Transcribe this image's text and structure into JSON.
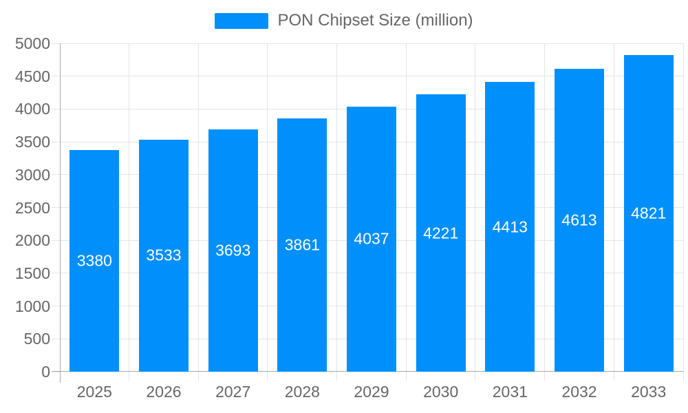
{
  "chart_data": {
    "type": "bar",
    "title": "",
    "legend": {
      "label": "PON Chipset Size (million)",
      "position": "top"
    },
    "categories": [
      "2025",
      "2026",
      "2027",
      "2028",
      "2029",
      "2030",
      "2031",
      "2032",
      "2033"
    ],
    "values": [
      3380,
      3533,
      3693,
      3861,
      4037,
      4221,
      4413,
      4613,
      4821
    ],
    "xlabel": "",
    "ylabel": "",
    "ylim": [
      0,
      5000
    ],
    "yticks": [
      0,
      500,
      1000,
      1500,
      2000,
      2500,
      3000,
      3500,
      4000,
      4500,
      5000
    ],
    "grid": true,
    "colors": {
      "bar": "#008FFB",
      "bar_value_label": "#FFFFFF",
      "axis_label_text": "#666666",
      "legend_text": "#666666",
      "grid_line": "#E4E4E4",
      "axis_line": "#A8A8A8",
      "background": "#FFFFFF"
    }
  }
}
